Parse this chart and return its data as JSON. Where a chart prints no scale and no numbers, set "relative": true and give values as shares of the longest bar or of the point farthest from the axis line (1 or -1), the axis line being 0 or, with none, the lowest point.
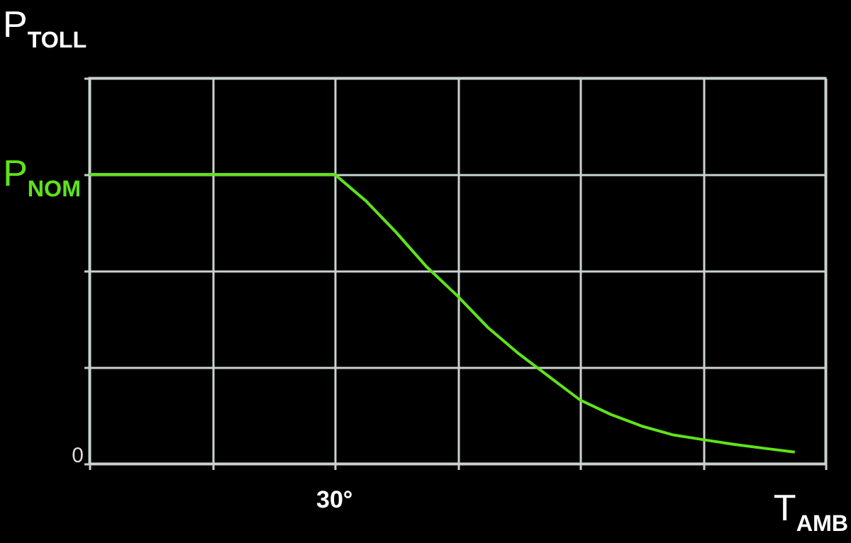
{
  "chart_data": {
    "type": "line",
    "relative": true,
    "xlabel": "T$_{AMB}$",
    "ylabel": "P$_{TOLL}$",
    "categories": [
      null,
      null,
      null,
      null,
      null,
      null,
      null,
      null,
      null,
      null,
      null,
      null,
      null,
      null,
      null,
      null,
      null,
      null,
      null,
      null,
      null,
      null,
      null,
      null,
      null
    ],
    "series": [
      {
        "color": "#5fe31c",
        "values": [
          1,
          1,
          1,
          1,
          1,
          1,
          1,
          1,
          1,
          0.91,
          0.8,
          0.68,
          0.58,
          0.47,
          0.38,
          0.3,
          0.22,
          0.17,
          0.13,
          0.1,
          0.083,
          0.067,
          0.053,
          0.04,
          null
        ]
      }
    ],
    "annotations": [
      "30°",
      "0",
      "P$_{NOM}$"
    ],
    "grid": true,
    "line_style": "solid"
  }
}
